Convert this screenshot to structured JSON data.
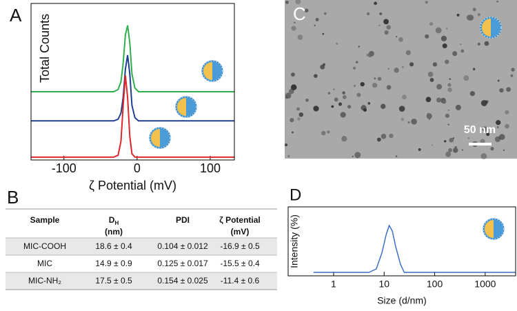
{
  "chart_data": [
    {
      "type": "line",
      "panel": "A",
      "x_label": "ζ Potential (mV)",
      "y_label": "Total Counts",
      "xlim": [
        -145,
        133
      ],
      "ylim": [
        0,
        100
      ],
      "xticks": [
        -100,
        0,
        100
      ],
      "x": [
        -145,
        -32,
        -26,
        -22,
        -19,
        -16,
        -13,
        -10,
        -7,
        -3,
        2,
        133
      ],
      "series": [
        {
          "color": "#2fae4e",
          "values": [
            43.6,
            43.6,
            45,
            50,
            62,
            80,
            86,
            75,
            55,
            46,
            43.6,
            43.6
          ]
        },
        {
          "color": "#1f3f8f",
          "values": [
            25,
            25,
            26,
            30,
            40,
            58,
            67,
            55,
            35,
            27,
            25,
            25
          ]
        },
        {
          "color": "#e0262b",
          "values": [
            1.8,
            1.8,
            3,
            12,
            35,
            54,
            40,
            15,
            4,
            1.8,
            1.8,
            1.8
          ]
        }
      ]
    },
    {
      "type": "line",
      "panel": "D",
      "x_label": "Size (d/nm)",
      "y_label": "Intensity (%)",
      "xscale": "log",
      "xlim": [
        0.126,
        4000
      ],
      "ylim": [
        0,
        100
      ],
      "xticks": [
        1,
        10,
        100,
        1000
      ],
      "x": [
        0.4,
        5,
        7,
        9,
        11,
        12.6,
        14.5,
        17,
        21,
        25,
        4000
      ],
      "series": [
        {
          "color": "#3a6fc4",
          "values": [
            5,
            5,
            10,
            33,
            60,
            73,
            65,
            42,
            17,
            5,
            5
          ]
        }
      ]
    }
  ],
  "table": {
    "panel": "B",
    "columns": [
      {
        "text": "Sample"
      },
      {
        "text": "D",
        "sub": "H",
        "line2": "(nm)"
      },
      {
        "text": "PDI"
      },
      {
        "text": "ζ Potential",
        "line2": "(mV)"
      }
    ],
    "rows": [
      [
        "MIC-COOH",
        "18.6 ± 0.4",
        "0.104 ± 0.012",
        "-16.9 ± 0.5"
      ],
      [
        "MIC",
        "14.9 ± 0.9",
        "0.125 ± 0.017",
        "-15.5 ± 0.4"
      ],
      [
        "MIC-NH₂",
        "17.5 ± 0.5",
        "0.154 ± 0.025",
        "-11.4 ± 0.6"
      ]
    ]
  },
  "image": {
    "panel": "C",
    "scale_bar": "50 nm"
  }
}
